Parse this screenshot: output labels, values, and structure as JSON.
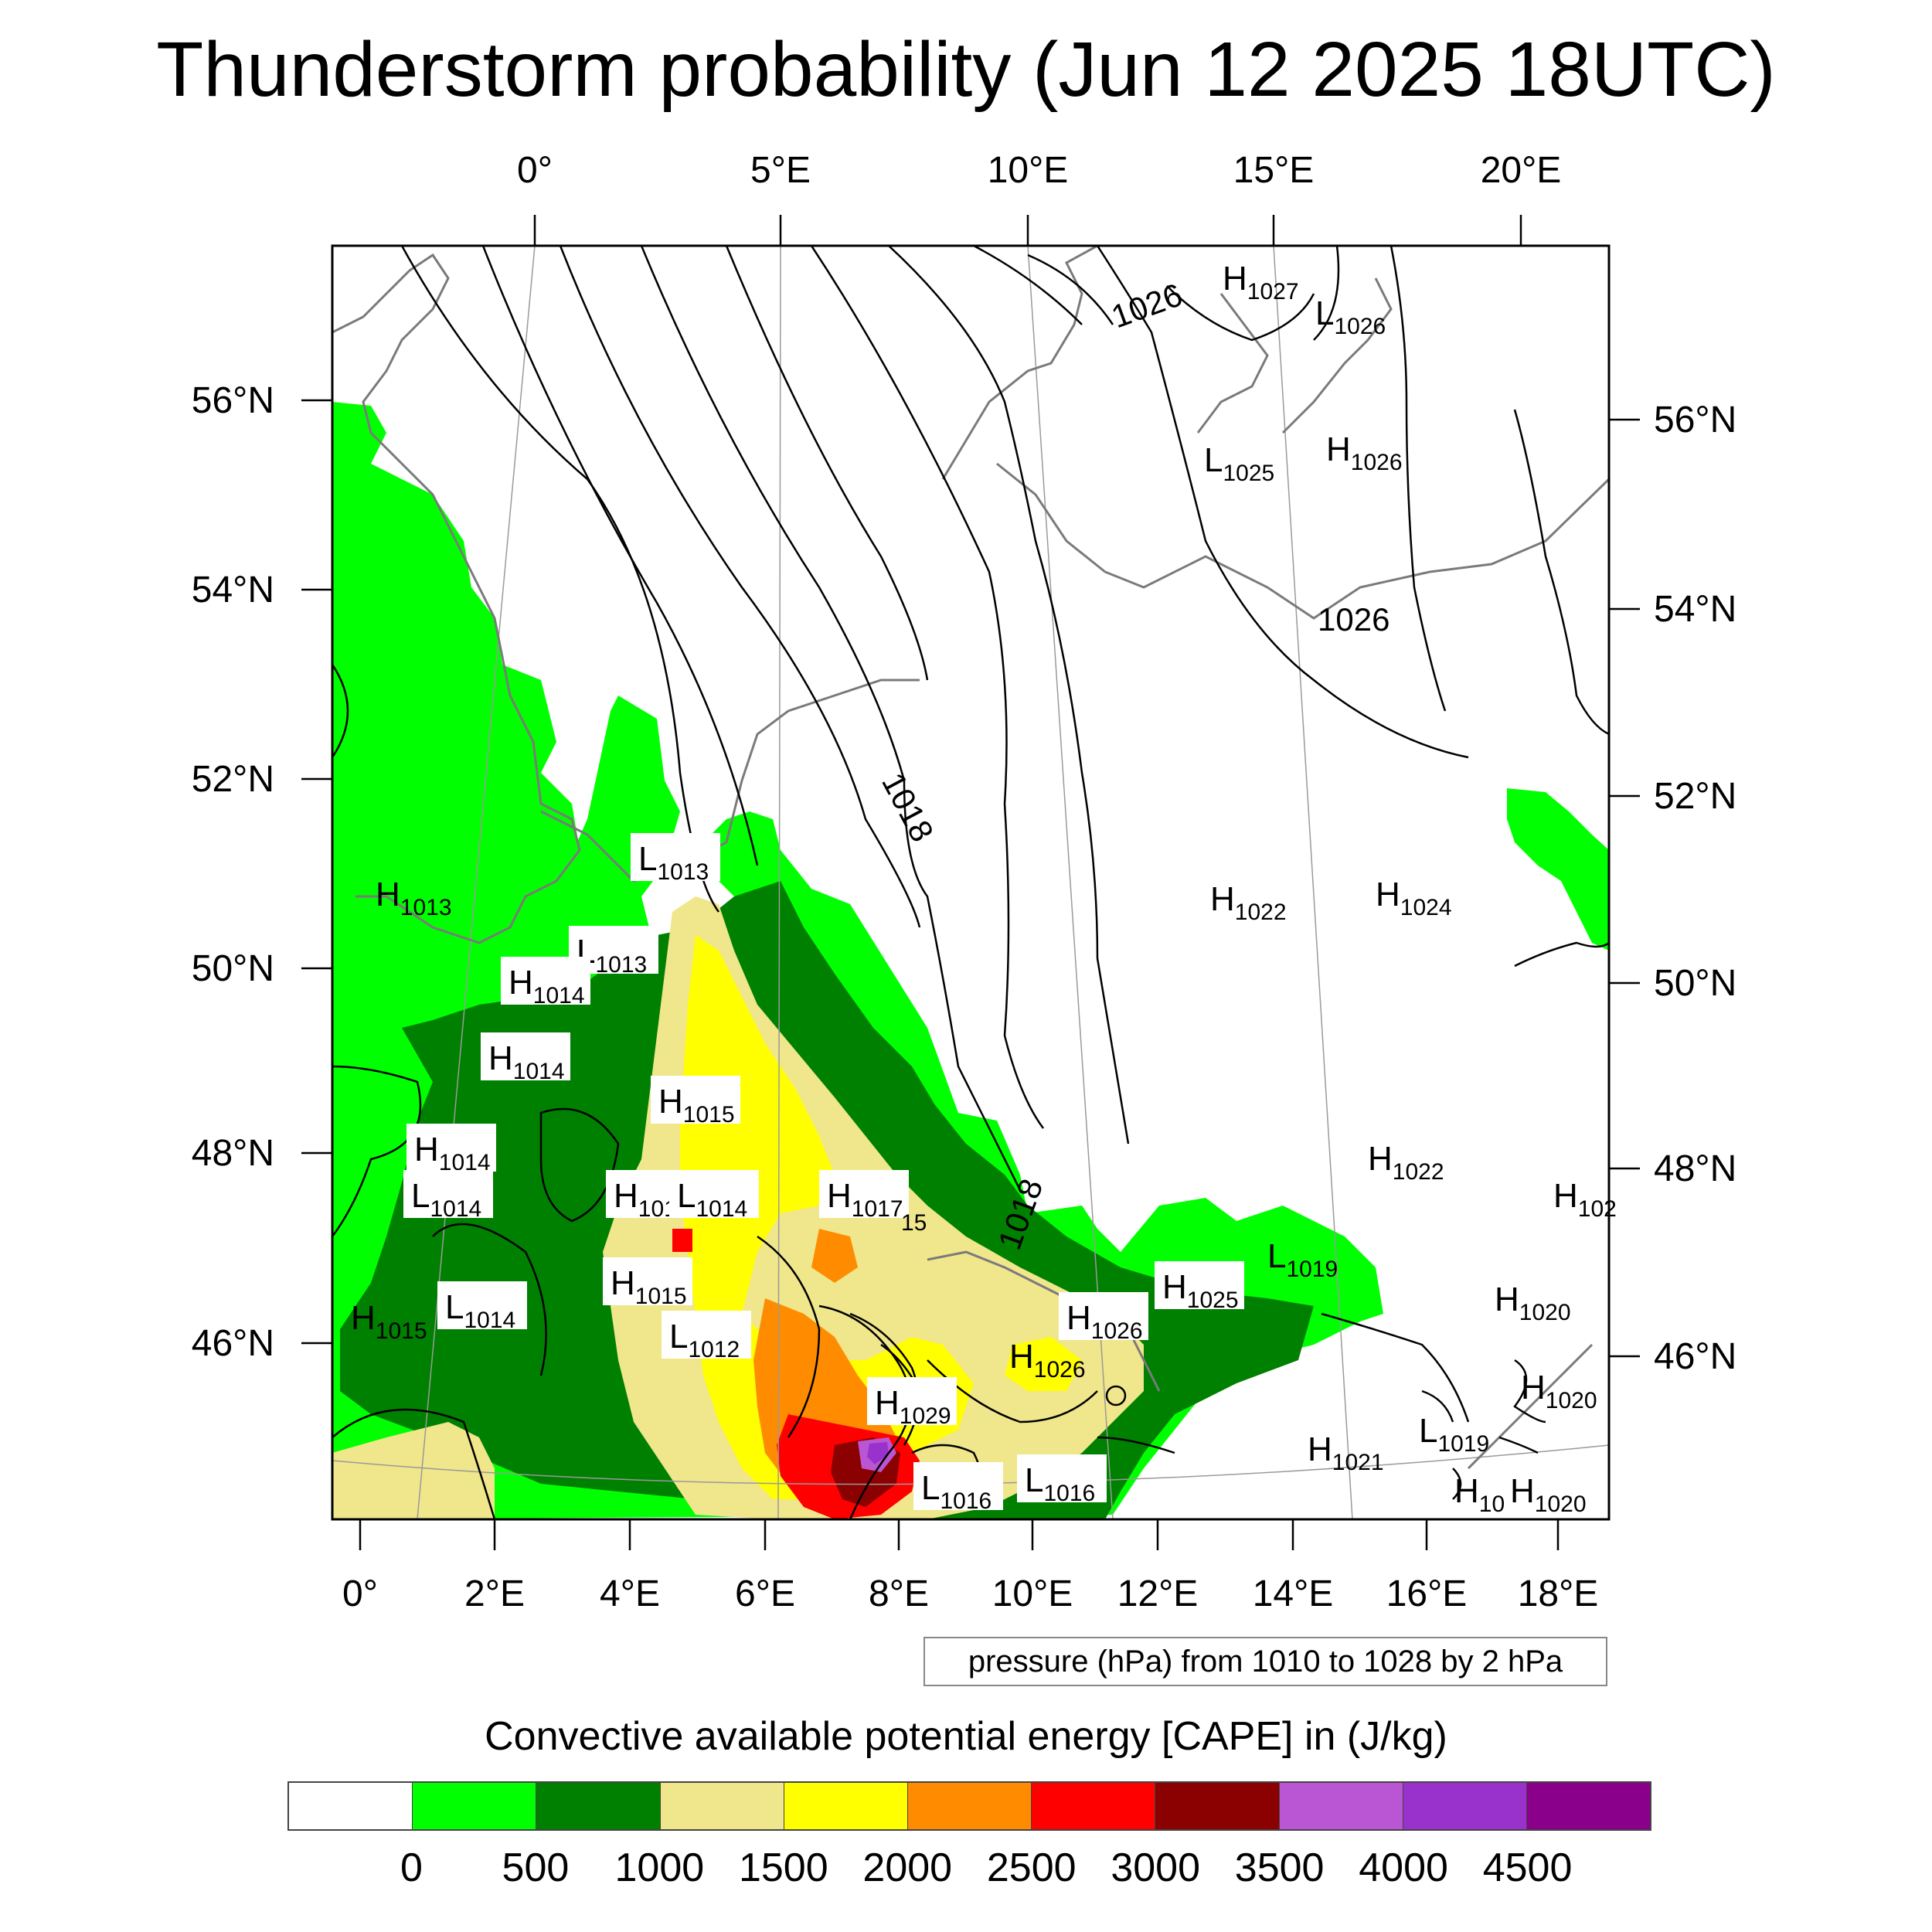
{
  "title": "Thunderstorm probability (Jun 12 2025 18UTC)",
  "axes": {
    "top_lon_labels": [
      "0°",
      "5°E",
      "10°E",
      "15°E",
      "20°E"
    ],
    "bottom_lon_labels": [
      "0°",
      "2°E",
      "4°E",
      "6°E",
      "8°E",
      "10°E",
      "12°E",
      "14°E",
      "16°E",
      "18°E"
    ],
    "left_lat_labels": [
      "56°N",
      "54°N",
      "52°N",
      "50°N",
      "48°N",
      "46°N"
    ],
    "right_lat_labels": [
      "56°N",
      "54°N",
      "52°N",
      "50°N",
      "48°N",
      "46°N"
    ]
  },
  "isobar_labels": [
    "1026",
    "1026",
    "1018",
    "1018"
  ],
  "pressure_centers": [
    {
      "type": "H",
      "value": "1027"
    },
    {
      "type": "L",
      "value": "1026"
    },
    {
      "type": "L",
      "value": "1025"
    },
    {
      "type": "H",
      "value": "1026"
    },
    {
      "type": "L",
      "value": "1013"
    },
    {
      "type": "H",
      "value": "1013"
    },
    {
      "type": "H",
      "value": "1022"
    },
    {
      "type": "H",
      "value": "1024"
    },
    {
      "type": "L",
      "value": "1013"
    },
    {
      "type": "H",
      "value": "1014"
    },
    {
      "type": "H",
      "value": "1014"
    },
    {
      "type": "H",
      "value": "1015"
    },
    {
      "type": "H",
      "value": "1014"
    },
    {
      "type": "L",
      "value": "1014"
    },
    {
      "type": "H",
      "value": "101"
    },
    {
      "type": "L",
      "value": "1014"
    },
    {
      "type": "H",
      "value": "1017"
    },
    {
      "type": "",
      "value": "15"
    },
    {
      "type": "H",
      "value": "1022"
    },
    {
      "type": "H",
      "value": "102"
    },
    {
      "type": "L",
      "value": "1019"
    },
    {
      "type": "H",
      "value": "1015"
    },
    {
      "type": "H",
      "value": "1025"
    },
    {
      "type": "H",
      "value": "1026"
    },
    {
      "type": "H",
      "value": "1015"
    },
    {
      "type": "L",
      "value": "1014"
    },
    {
      "type": "L",
      "value": "1012"
    },
    {
      "type": "H",
      "value": "1020"
    },
    {
      "type": "H",
      "value": "1026"
    },
    {
      "type": "H",
      "value": "1029"
    },
    {
      "type": "H",
      "value": "1020"
    },
    {
      "type": "L",
      "value": "1019"
    },
    {
      "type": "H",
      "value": "1021"
    },
    {
      "type": "L",
      "value": "1016"
    },
    {
      "type": "L",
      "value": "1016"
    },
    {
      "type": "H",
      "value": "10"
    },
    {
      "type": "H",
      "value": "1020"
    }
  ],
  "legend_note": "pressure (hPa) from 1010 to 1028 by 2 hPa",
  "colorbar": {
    "title": "Convective available potential energy [CAPE] in (J/kg)",
    "labels": [
      "0",
      "500",
      "1000",
      "1500",
      "2000",
      "2500",
      "3000",
      "3500",
      "4000",
      "4500"
    ],
    "colors": [
      "#ffffff",
      "#00ff00",
      "#008000",
      "#f0e68c",
      "#ffff00",
      "#ff8c00",
      "#ff0000",
      "#8b0000",
      "#ba55d3",
      "#9932cc",
      "#8b008b"
    ]
  }
}
